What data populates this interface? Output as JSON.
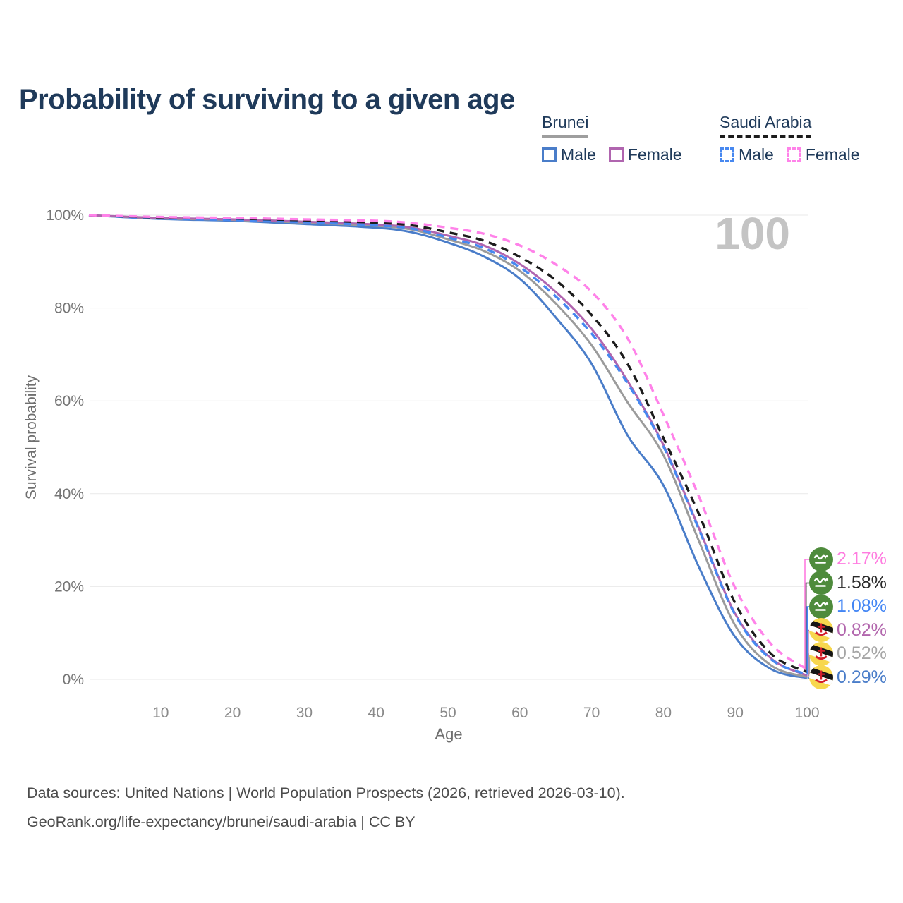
{
  "header": {
    "title": "Probability of surviving to a given age"
  },
  "legend": {
    "groups": [
      {
        "title": "Brunei",
        "underline": "solid",
        "underline_color": "#9e9e9e",
        "items": [
          {
            "label": "Male",
            "color": "#4a7dc9",
            "dash": false
          },
          {
            "label": "Female",
            "color": "#b065af",
            "dash": false
          }
        ]
      },
      {
        "title": "Saudi Arabia",
        "underline": "dashed",
        "underline_color": "#1c1c1c",
        "items": [
          {
            "label": "Male",
            "color": "#4788f0",
            "dash": true
          },
          {
            "label": "Female",
            "color": "#ff82e9",
            "dash": true
          }
        ]
      }
    ]
  },
  "watermark_age": "100",
  "axes": {
    "xlabel": "Age",
    "ylabel": "Survival probability"
  },
  "chart_data": {
    "type": "line",
    "title": "Probability of surviving to a given age",
    "xlabel": "Age",
    "ylabel": "Survival probability",
    "xlim": [
      0,
      100
    ],
    "ylim": [
      0,
      100
    ],
    "xticks": [
      10,
      20,
      30,
      40,
      50,
      60,
      70,
      80,
      90,
      100
    ],
    "yticks": [
      0,
      20,
      40,
      60,
      80,
      100
    ],
    "ytick_suffix": "%",
    "grid": "horizontal",
    "hover_age_indicator": "100",
    "ages": [
      0,
      10,
      20,
      30,
      40,
      45,
      50,
      55,
      60,
      65,
      70,
      75,
      80,
      85,
      90,
      95,
      100
    ],
    "series": [
      {
        "name": "Brunei Male",
        "country": "Brunei",
        "sex": "male",
        "color": "#4a7dc9",
        "dash": false,
        "values": [
          100,
          99.2,
          98.8,
          98.1,
          97.3,
          96.3,
          94.1,
          91.1,
          86.3,
          78.0,
          68.0,
          52.6,
          41.8,
          24.0,
          9.1,
          2.2,
          0.29
        ]
      },
      {
        "name": "Brunei Both sexes",
        "country": "Brunei",
        "sex": "both",
        "color": "#9b9b9b",
        "dash": false,
        "values": [
          100,
          99.3,
          99.0,
          98.4,
          97.7,
          96.9,
          94.8,
          92.3,
          88.0,
          81.0,
          72.0,
          59.7,
          48.3,
          29.6,
          11.6,
          3.0,
          0.52
        ]
      },
      {
        "name": "Brunei Female",
        "country": "Brunei",
        "sex": "female",
        "color": "#b065af",
        "dash": false,
        "values": [
          100,
          99.4,
          99.1,
          98.6,
          98.0,
          97.3,
          95.6,
          93.5,
          89.5,
          83.5,
          75.5,
          64.3,
          50.5,
          32.4,
          14.1,
          4.5,
          0.82
        ]
      },
      {
        "name": "Saudi Arabia Male",
        "country": "Saudi Arabia",
        "sex": "male",
        "color": "#4788f0",
        "dash": true,
        "values": [
          100,
          99.3,
          99.0,
          98.5,
          97.8,
          97.1,
          95.2,
          92.9,
          88.8,
          82.5,
          74.5,
          63.8,
          50.2,
          32.1,
          13.9,
          4.3,
          1.08
        ]
      },
      {
        "name": "Saudi Arabia Both sexes",
        "country": "Saudi Arabia",
        "sex": "both",
        "color": "#1c1c1c",
        "dash": true,
        "values": [
          100,
          99.5,
          99.3,
          98.9,
          98.4,
          97.8,
          96.3,
          94.5,
          91.0,
          86.0,
          78.5,
          68.0,
          52.0,
          35.4,
          16.4,
          5.5,
          1.58
        ]
      },
      {
        "name": "Saudi Arabia Female",
        "country": "Saudi Arabia",
        "sex": "female",
        "color": "#ff82e9",
        "dash": true,
        "values": [
          100,
          99.6,
          99.4,
          99.1,
          98.8,
          98.3,
          97.3,
          96.0,
          93.5,
          89.4,
          83.5,
          73.5,
          57.0,
          39.2,
          19.7,
          7.6,
          2.17
        ]
      }
    ],
    "end_labels": [
      {
        "series": "Saudi Arabia Female",
        "flag": "saudi-arabia-flag-icon",
        "value": "2.17%",
        "end_value": 2.17,
        "color": "#ff7ce0"
      },
      {
        "series": "Saudi Arabia Both sexes",
        "flag": "saudi-arabia-flag-icon",
        "value": "1.58%",
        "end_value": 1.58,
        "color": "#2a2a2a"
      },
      {
        "series": "Saudi Arabia Male",
        "flag": "saudi-arabia-flag-icon",
        "value": "1.08%",
        "end_value": 1.08,
        "color": "#4285f4"
      },
      {
        "series": "Brunei Female",
        "flag": "brunei-flag-icon",
        "value": "0.82%",
        "end_value": 0.82,
        "color": "#b266ad"
      },
      {
        "series": "Brunei Both sexes",
        "flag": "brunei-flag-icon",
        "value": "0.52%",
        "end_value": 0.52,
        "color": "#a6a6a6"
      },
      {
        "series": "Brunei Male",
        "flag": "brunei-flag-icon",
        "value": "0.29%",
        "end_value": 0.29,
        "color": "#4a7dc9"
      }
    ]
  },
  "footer": {
    "line1": "Data sources: United Nations | World Population Prospects (2026, retrieved 2026-03-10).",
    "line2": "GeoRank.org/life-expectancy/brunei/saudi-arabia | CC BY"
  }
}
